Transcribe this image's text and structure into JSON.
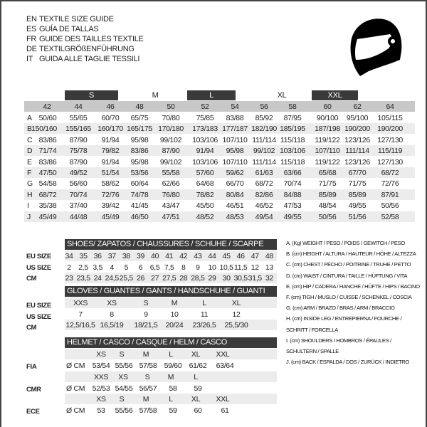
{
  "titles": [
    {
      "code": "EN",
      "text": "TEXTILE SIZE GUIDE"
    },
    {
      "code": "ES",
      "text": "GUÍA DE TALLAS"
    },
    {
      "code": "FR",
      "text": "GUIDE DES TAILLES TEXTILE"
    },
    {
      "code": "DE",
      "text": "TEXTILGRÖßENFÜHRUNG"
    },
    {
      "code": "IT",
      "text": "GUIDA ALLE TAGLIE TESSILI"
    }
  ],
  "icon": "helmet-icon",
  "textile": {
    "size_groups": [
      {
        "label": "S",
        "dark": true
      },
      {
        "label": "M",
        "dark": false
      },
      {
        "label": "L",
        "dark": true
      },
      {
        "label": "XL",
        "dark": false
      },
      {
        "label": "XXL",
        "dark": true
      }
    ],
    "sizes": [
      "42",
      "44",
      "46",
      "48",
      "50",
      "52",
      "54",
      "56",
      "58",
      "60",
      "62",
      "64"
    ],
    "rows": [
      {
        "key": "A",
        "values": [
          "50/60",
          "55/65",
          "60/70",
          "65/75",
          "70/80",
          "75/85",
          "83/88",
          "85/92",
          "87/95",
          "90/100",
          "95/100",
          "105/115"
        ]
      },
      {
        "key": "B",
        "values": [
          "150/160",
          "155/165",
          "160/170",
          "165/175",
          "170/180",
          "173/183",
          "177/187",
          "182/190",
          "185/195",
          "187/198",
          "190/200",
          "190/200"
        ]
      },
      {
        "key": "C",
        "values": [
          "83/86",
          "87/90",
          "91/94",
          "95/98",
          "99/102",
          "103/106",
          "107/110",
          "111/114",
          "115/118",
          "119/122",
          "123/126",
          "127/130"
        ]
      },
      {
        "key": "D",
        "values": [
          "71/74",
          "75/78",
          "79/82",
          "83/86",
          "87/90",
          "91/94",
          "95/98",
          "99/102",
          "103/106",
          "107/110",
          "111/114",
          "115/119"
        ]
      },
      {
        "key": "E",
        "values": [
          "83/86",
          "87/90",
          "91/94",
          "95/98",
          "99/102",
          "103/106",
          "107/110",
          "111/114",
          "115/118",
          "119/122",
          "123/126",
          "127/130"
        ]
      },
      {
        "key": "F",
        "values": [
          "47/50",
          "49/52",
          "51/54",
          "53/56",
          "55/58",
          "57/60",
          "59/62",
          "61/63",
          "63/66",
          "65/68",
          "67/70",
          "68/72"
        ]
      },
      {
        "key": "G",
        "values": [
          "54/58",
          "56/60",
          "58/62",
          "60/64",
          "62/66",
          "64/68",
          "66/70",
          "68/72",
          "70/74",
          "71/75",
          "71/75",
          "72/76"
        ]
      },
      {
        "key": "H",
        "values": [
          "68/72",
          "70/74",
          "72/76",
          "74/78",
          "76/80",
          "78/82",
          "80/84",
          "82/86",
          "84/88",
          "85/89",
          "85/89",
          "87/91"
        ]
      },
      {
        "key": "I",
        "values": [
          "35/38",
          "37/40",
          "39/42",
          "41/45",
          "43/47",
          "45/50",
          "46/51",
          "46/52",
          "47/53",
          "48/54",
          "49/55",
          "50/56"
        ]
      },
      {
        "key": "J",
        "values": [
          "45/49",
          "44/48",
          "45/49",
          "46/50",
          "47/51",
          "48/52",
          "48/53",
          "49/54",
          "49/55",
          "50/56",
          "51/56",
          "52/58"
        ]
      }
    ]
  },
  "shoes": {
    "header": "SHOES/ ZAPATOS / CHAUSSURES / SCHUHE / SCARPE",
    "rows": [
      {
        "label": "EU SIZE",
        "values": [
          "34",
          "35",
          "36",
          "37",
          "38",
          "39",
          "40",
          "41",
          "42",
          "43",
          "44",
          "45",
          "46",
          "47",
          "48"
        ]
      },
      {
        "label": "US SIZE",
        "values": [
          "2",
          "2,5",
          "3,5",
          "4",
          "5",
          "6",
          "6,5",
          "7,5",
          "8",
          "9",
          "10",
          "10,5",
          "11,5",
          "12",
          "13"
        ]
      },
      {
        "label": "CM",
        "values": [
          "23",
          "23,5",
          "24",
          "24,5",
          "25,5",
          "26",
          "27",
          "27,5",
          "28",
          "28,5",
          "29",
          "30",
          "30,5",
          "31,5",
          "32"
        ]
      }
    ]
  },
  "gloves": {
    "header": "GLOVES / GUANTES / GANTS / HANDSCHUHE / GUANTI",
    "rows": [
      {
        "label": "EU SIZE",
        "values": [
          "XXS",
          "XS",
          "S",
          "M",
          "L",
          "XL"
        ]
      },
      {
        "label": "US SIZE",
        "values": [
          "7",
          "8",
          "9",
          "10",
          "11",
          "12"
        ]
      },
      {
        "label": "CM",
        "values": [
          "12,5/16,5",
          "16,5/19",
          "18/21,5",
          "20/24",
          "23/26,5",
          "25,5/30"
        ]
      }
    ]
  },
  "helmet": {
    "header": "HELMET / CASCO / CASQUE / HELM / CASCO",
    "groups": [
      {
        "label": "FIA",
        "unit": "Ø CM",
        "sizes": [
          "XS",
          "S",
          "M",
          "L",
          "XL",
          "XXL"
        ],
        "values": [
          "53/54",
          "55/56",
          "57/58",
          "59/60",
          "61/62",
          "63/64"
        ]
      },
      {
        "label": "CMR",
        "unit": "Ø CM",
        "sizes": [
          "XXS",
          "XS",
          "S",
          "M",
          "L"
        ],
        "values": [
          "52/53",
          "54/55",
          "56/57",
          "58",
          "59"
        ]
      },
      {
        "label": "ECE",
        "unit": "Ø CM",
        "sizes": [
          "XS",
          "S",
          "M",
          "L",
          "XL",
          "XXL"
        ],
        "values": [
          "53",
          "55/56",
          "57/58",
          "59",
          "60",
          "61"
        ]
      }
    ]
  },
  "legend": [
    "A. (Kg) WEIGHT / PESO / POIDS / GEWITCH / PESO",
    "B. (cm) HEIGHT / ALTURA / HAUTEUR / HÖHE / ALTEZZA",
    "C. (cm) CHEST / PECHO / POITRINE / TRUHE / PETTO",
    "D. (cm) WAIST / CINTURA / TAILLE / HÜFTUNG / VITA",
    "E. (cm) HIP / CADERA / HANCHE / HÜFTE / HIPS /  BACINO",
    "F.  (cm) TIGH / MUSLO / CUISSE / SCHENKEL / COSCIA",
    "G. (cm) ARM  / BRAZO / BRAS / ARM / BRACCIO",
    "H. (cm) INSIDE LEG / ENTREPIERNA / FOURCHE /",
    "SCHRITT / FORCELLA",
    "I.  (cm) SHOULDERS / HOMBROS / ÉPAULES /",
    "SCHULTERN / SPALLE",
    "J. (cm) BACK / ESPALDA / DOS / ZURÜCK / INDIETRO"
  ]
}
